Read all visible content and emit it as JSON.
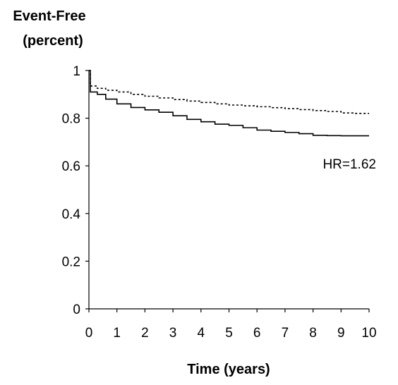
{
  "chart_data": {
    "type": "line",
    "title": "",
    "ylabel_lines": [
      "Event-Free",
      "(percent)"
    ],
    "xlabel": "Time (years)",
    "xlim": [
      0,
      10
    ],
    "ylim": [
      0,
      1
    ],
    "x_ticks": [
      0,
      1,
      2,
      3,
      4,
      5,
      6,
      7,
      8,
      9,
      10
    ],
    "y_ticks": [
      0,
      0.2,
      0.4,
      0.6,
      0.8,
      1
    ],
    "y_tick_labels": [
      "0",
      "0.2",
      "0.4",
      "0.6",
      "0.8",
      "1"
    ],
    "grid": false,
    "legend": "none",
    "annotation": {
      "text": "HR=1.62",
      "x": 9.3,
      "y": 0.61
    },
    "series": [
      {
        "style": "solid",
        "color": "#000000",
        "x": [
          0,
          0.05,
          0.3,
          0.6,
          1,
          1.5,
          2,
          2.5,
          3,
          3.5,
          4,
          4.5,
          5,
          5.5,
          6,
          6.5,
          7,
          7.5,
          8,
          8.5,
          9,
          9.5,
          10
        ],
        "y": [
          1.0,
          0.91,
          0.9,
          0.88,
          0.86,
          0.845,
          0.835,
          0.825,
          0.81,
          0.795,
          0.785,
          0.775,
          0.77,
          0.76,
          0.75,
          0.745,
          0.74,
          0.735,
          0.728,
          0.727,
          0.726,
          0.726,
          0.726
        ]
      },
      {
        "style": "dashed",
        "color": "#000000",
        "x": [
          0,
          0.05,
          0.3,
          0.6,
          1,
          1.5,
          2,
          2.5,
          3,
          3.5,
          4,
          4.5,
          5,
          5.5,
          6,
          6.5,
          7,
          7.5,
          8,
          8.5,
          9,
          9.5,
          10
        ],
        "y": [
          1.0,
          0.935,
          0.925,
          0.917,
          0.91,
          0.9,
          0.892,
          0.885,
          0.878,
          0.872,
          0.866,
          0.86,
          0.855,
          0.852,
          0.848,
          0.844,
          0.84,
          0.836,
          0.832,
          0.828,
          0.822,
          0.82,
          0.82
        ]
      }
    ]
  }
}
